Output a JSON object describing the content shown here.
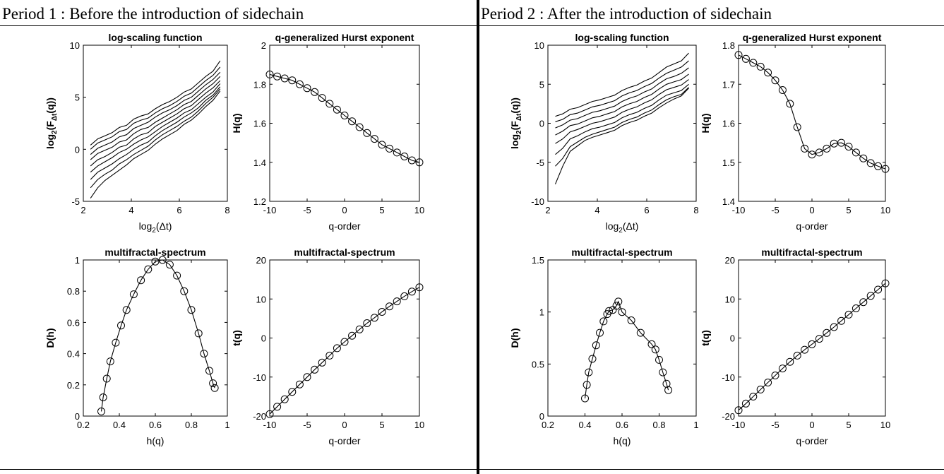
{
  "headers": {
    "period1": "Period 1 : Before the introduction of sidechain",
    "period2": "Period 2 : After the introduction of sidechain"
  },
  "chart_data": [
    {
      "id": "p1-scaling",
      "type": "line",
      "title": "log-scaling function",
      "xlabel_parts": [
        "log",
        "2",
        "(Δt)"
      ],
      "ylabel_parts": [
        "log",
        "2",
        "(F",
        "Δt",
        "(q))"
      ],
      "xlim": [
        2,
        8
      ],
      "ylim": [
        -5,
        10
      ],
      "xticks": [
        2,
        4,
        6,
        8
      ],
      "yticks": [
        -5,
        0,
        5,
        10
      ],
      "x": [
        2.3,
        2.6,
        2.9,
        3.2,
        3.5,
        3.8,
        4.1,
        4.4,
        4.7,
        5.0,
        5.3,
        5.6,
        5.9,
        6.2,
        6.5,
        6.8,
        7.1,
        7.4,
        7.7
      ],
      "series": [
        {
          "values": [
            0.4,
            1.0,
            1.3,
            1.6,
            2.1,
            2.3,
            2.9,
            3.2,
            3.4,
            3.9,
            4.3,
            4.6,
            5.0,
            5.5,
            5.8,
            6.4,
            7.0,
            7.5,
            8.5
          ]
        },
        {
          "values": [
            0.0,
            0.6,
            0.9,
            1.2,
            1.7,
            1.9,
            2.5,
            2.8,
            3.0,
            3.5,
            3.9,
            4.2,
            4.6,
            5.1,
            5.4,
            6.0,
            6.6,
            7.1,
            7.9
          ]
        },
        {
          "values": [
            -0.5,
            0.1,
            0.4,
            0.7,
            1.2,
            1.4,
            2.0,
            2.3,
            2.6,
            3.1,
            3.5,
            3.8,
            4.2,
            4.7,
            5.0,
            5.6,
            6.2,
            6.7,
            7.4
          ]
        },
        {
          "values": [
            -1.0,
            -0.4,
            -0.1,
            0.2,
            0.7,
            0.9,
            1.5,
            1.9,
            2.1,
            2.6,
            3.0,
            3.4,
            3.8,
            4.3,
            4.6,
            5.2,
            5.8,
            6.3,
            7.0
          ]
        },
        {
          "values": [
            -1.6,
            -1.0,
            -0.7,
            -0.3,
            0.2,
            0.4,
            1.0,
            1.4,
            1.6,
            2.2,
            2.6,
            3.0,
            3.4,
            3.9,
            4.2,
            4.8,
            5.4,
            5.9,
            6.6
          ]
        },
        {
          "values": [
            -2.2,
            -1.6,
            -1.2,
            -0.8,
            -0.3,
            0.0,
            0.5,
            0.9,
            1.2,
            1.7,
            2.2,
            2.6,
            3.0,
            3.5,
            3.8,
            4.4,
            5.0,
            5.5,
            6.3
          ]
        },
        {
          "values": [
            -2.9,
            -2.2,
            -1.8,
            -1.4,
            -0.9,
            -0.5,
            0.0,
            0.4,
            0.7,
            1.3,
            1.8,
            2.2,
            2.6,
            3.1,
            3.5,
            4.0,
            4.7,
            5.2,
            6.0
          ]
        },
        {
          "values": [
            -3.7,
            -2.9,
            -2.4,
            -2.0,
            -1.4,
            -1.0,
            -0.5,
            -0.1,
            0.3,
            0.9,
            1.4,
            1.8,
            2.2,
            2.7,
            3.1,
            3.7,
            4.4,
            5.0,
            5.8
          ]
        },
        {
          "values": [
            -4.7,
            -3.7,
            -3.0,
            -2.5,
            -2.0,
            -1.5,
            -0.9,
            -0.5,
            -0.1,
            0.5,
            1.0,
            1.4,
            1.8,
            2.4,
            2.8,
            3.4,
            4.1,
            4.7,
            5.6
          ]
        }
      ]
    },
    {
      "id": "p1-hurst",
      "type": "scatter",
      "title": "q-generalized Hurst exponent",
      "xlabel": "q-order",
      "ylabel": "H(q)",
      "xlim": [
        -10,
        10
      ],
      "ylim": [
        1.2,
        2
      ],
      "xticks": [
        -10,
        -5,
        0,
        5,
        10
      ],
      "yticks": [
        1.2,
        1.4,
        1.6,
        1.8,
        2
      ],
      "x": [
        -10,
        -9,
        -8,
        -7,
        -6,
        -5,
        -4,
        -3,
        -2,
        -1,
        0,
        1,
        2,
        3,
        4,
        5,
        6,
        7,
        8,
        9,
        10
      ],
      "series": [
        {
          "values": [
            1.85,
            1.84,
            1.83,
            1.82,
            1.8,
            1.78,
            1.76,
            1.73,
            1.7,
            1.67,
            1.64,
            1.61,
            1.58,
            1.55,
            1.52,
            1.49,
            1.47,
            1.45,
            1.43,
            1.41,
            1.4
          ]
        }
      ]
    },
    {
      "id": "p1-spectrum",
      "type": "scatter",
      "title": "multifractal-spectrum",
      "xlabel": "h(q)",
      "ylabel": "D(h)",
      "xlim": [
        0.2,
        1
      ],
      "ylim": [
        0,
        1
      ],
      "xticks": [
        0.2,
        0.4,
        0.6,
        0.8,
        1
      ],
      "yticks": [
        0,
        0.2,
        0.4,
        0.6,
        0.8,
        1
      ],
      "x": [
        0.3,
        0.31,
        0.33,
        0.35,
        0.38,
        0.41,
        0.44,
        0.48,
        0.52,
        0.56,
        0.6,
        0.64,
        0.68,
        0.72,
        0.76,
        0.8,
        0.84,
        0.87,
        0.9,
        0.92,
        0.93
      ],
      "series": [
        {
          "values": [
            0.03,
            0.12,
            0.24,
            0.35,
            0.47,
            0.58,
            0.68,
            0.78,
            0.87,
            0.94,
            0.99,
            1.0,
            0.97,
            0.9,
            0.8,
            0.68,
            0.53,
            0.4,
            0.29,
            0.21,
            0.18
          ]
        }
      ]
    },
    {
      "id": "p1-tau",
      "type": "scatter",
      "title": "multifractal-spectrum",
      "xlabel": "q-order",
      "ylabel": "t(q)",
      "xlim": [
        -10,
        10
      ],
      "ylim": [
        -20,
        20
      ],
      "xticks": [
        -10,
        -5,
        0,
        5,
        10
      ],
      "yticks": [
        -20,
        -10,
        0,
        10,
        20
      ],
      "x": [
        -10,
        -9,
        -8,
        -7,
        -6,
        -5,
        -4,
        -3,
        -2,
        -1,
        0,
        1,
        2,
        3,
        4,
        5,
        6,
        7,
        8,
        9,
        10
      ],
      "series": [
        {
          "values": [
            -19.5,
            -17.6,
            -15.7,
            -13.8,
            -11.9,
            -10.0,
            -8.1,
            -6.3,
            -4.5,
            -2.6,
            -1.0,
            0.6,
            2.2,
            3.8,
            5.2,
            6.7,
            8.1,
            9.4,
            10.7,
            11.9,
            13.0
          ]
        }
      ]
    },
    {
      "id": "p2-scaling",
      "type": "line",
      "title": "log-scaling function",
      "xlabel_parts": [
        "log",
        "2",
        "(Δt)"
      ],
      "ylabel_parts": [
        "log",
        "2",
        "(F",
        "Δt",
        "(q))"
      ],
      "xlim": [
        2,
        8
      ],
      "ylim": [
        -10,
        10
      ],
      "xticks": [
        2,
        4,
        6,
        8
      ],
      "yticks": [
        -10,
        -5,
        0,
        5,
        10
      ],
      "x": [
        2.3,
        2.6,
        2.9,
        3.2,
        3.5,
        3.8,
        4.1,
        4.4,
        4.7,
        5.0,
        5.3,
        5.6,
        5.9,
        6.2,
        6.5,
        6.8,
        7.1,
        7.4,
        7.7
      ],
      "series": [
        {
          "values": [
            0.9,
            1.2,
            1.8,
            2.0,
            2.4,
            2.8,
            3.0,
            3.3,
            3.6,
            4.2,
            4.6,
            4.9,
            5.4,
            5.8,
            6.5,
            7.2,
            7.6,
            8.0,
            9.0
          ]
        },
        {
          "values": [
            0.2,
            0.5,
            1.1,
            1.3,
            1.7,
            2.1,
            2.3,
            2.6,
            2.9,
            3.5,
            3.9,
            4.2,
            4.7,
            5.1,
            5.8,
            6.4,
            6.8,
            7.2,
            8.0
          ]
        },
        {
          "values": [
            -0.6,
            -0.2,
            0.4,
            0.6,
            1.0,
            1.4,
            1.6,
            1.9,
            2.2,
            2.8,
            3.2,
            3.5,
            4.0,
            4.4,
            5.1,
            5.7,
            6.0,
            6.4,
            7.1
          ]
        },
        {
          "values": [
            -1.5,
            -1.0,
            -0.3,
            -0.1,
            0.3,
            0.7,
            0.9,
            1.2,
            1.5,
            2.1,
            2.5,
            2.8,
            3.3,
            3.7,
            4.4,
            5.0,
            5.3,
            5.6,
            6.3
          ]
        },
        {
          "values": [
            -2.6,
            -2.0,
            -1.1,
            -0.8,
            -0.4,
            0.0,
            0.2,
            0.5,
            0.8,
            1.4,
            1.8,
            2.1,
            2.6,
            3.0,
            3.7,
            4.3,
            4.6,
            4.9,
            5.6
          ]
        },
        {
          "values": [
            -4.0,
            -3.2,
            -2.0,
            -1.6,
            -1.1,
            -0.7,
            -0.5,
            -0.2,
            0.1,
            0.7,
            1.1,
            1.4,
            1.9,
            2.3,
            3.0,
            3.6,
            3.9,
            4.2,
            5.0
          ]
        },
        {
          "values": [
            -5.5,
            -4.5,
            -3.0,
            -2.4,
            -1.8,
            -1.4,
            -1.1,
            -0.8,
            -0.5,
            0.1,
            0.5,
            0.8,
            1.3,
            1.7,
            2.4,
            3.0,
            3.4,
            3.7,
            4.6
          ]
        },
        {
          "values": [
            -7.8,
            -5.5,
            -3.6,
            -2.9,
            -2.2,
            -1.8,
            -1.5,
            -1.2,
            -0.9,
            -0.3,
            0.1,
            0.4,
            0.9,
            1.3,
            2.0,
            2.6,
            3.1,
            3.5,
            4.5
          ]
        }
      ]
    },
    {
      "id": "p2-hurst",
      "type": "scatter",
      "title": "q-generalized Hurst exponent",
      "xlabel": "q-order",
      "ylabel": "H(q)",
      "xlim": [
        -10,
        10
      ],
      "ylim": [
        1.4,
        1.8
      ],
      "xticks": [
        -10,
        -5,
        0,
        5,
        10
      ],
      "yticks": [
        1.4,
        1.5,
        1.6,
        1.7,
        1.8
      ],
      "x": [
        -10,
        -9,
        -8,
        -7,
        -6,
        -5,
        -4,
        -3,
        -2,
        -1,
        0,
        1,
        2,
        3,
        4,
        5,
        6,
        7,
        8,
        9,
        10
      ],
      "series": [
        {
          "values": [
            1.775,
            1.765,
            1.755,
            1.745,
            1.73,
            1.71,
            1.685,
            1.65,
            1.59,
            1.535,
            1.52,
            1.525,
            1.535,
            1.548,
            1.55,
            1.54,
            1.525,
            1.51,
            1.498,
            1.49,
            1.483
          ]
        }
      ]
    },
    {
      "id": "p2-spectrum",
      "type": "scatter",
      "title": "multifractal-spectrum",
      "xlabel": "h(q)",
      "ylabel": "D(h)",
      "xlim": [
        0.2,
        1
      ],
      "ylim": [
        0,
        1.5
      ],
      "xticks": [
        0.2,
        0.4,
        0.6,
        0.8,
        1
      ],
      "yticks": [
        0,
        0.5,
        1,
        1.5
      ],
      "x": [
        0.4,
        0.41,
        0.42,
        0.44,
        0.46,
        0.48,
        0.5,
        0.52,
        0.53,
        0.55,
        0.57,
        0.58,
        0.6,
        0.65,
        0.7,
        0.76,
        0.78,
        0.8,
        0.82,
        0.84,
        0.85
      ],
      "series": [
        {
          "values": [
            0.17,
            0.3,
            0.42,
            0.55,
            0.68,
            0.8,
            0.91,
            0.98,
            1.01,
            1.02,
            1.06,
            1.1,
            1.0,
            0.92,
            0.8,
            0.69,
            0.64,
            0.54,
            0.42,
            0.31,
            0.25
          ]
        }
      ]
    },
    {
      "id": "p2-tau",
      "type": "scatter",
      "title": "multifractal-spectrum",
      "xlabel": "q-order",
      "ylabel": "t(q)",
      "xlim": [
        -10,
        10
      ],
      "ylim": [
        -20,
        20
      ],
      "xticks": [
        -10,
        -5,
        0,
        5,
        10
      ],
      "yticks": [
        -20,
        -10,
        0,
        10,
        20
      ],
      "x": [
        -10,
        -9,
        -8,
        -7,
        -6,
        -5,
        -4,
        -3,
        -2,
        -1,
        0,
        1,
        2,
        3,
        4,
        5,
        6,
        7,
        8,
        9,
        10
      ],
      "series": [
        {
          "values": [
            -18.5,
            -16.8,
            -15.0,
            -13.2,
            -11.4,
            -9.6,
            -7.8,
            -6.1,
            -4.5,
            -3.0,
            -1.6,
            -0.2,
            1.3,
            2.8,
            4.4,
            6.0,
            7.6,
            9.2,
            10.8,
            12.4,
            14.0
          ]
        }
      ]
    }
  ]
}
